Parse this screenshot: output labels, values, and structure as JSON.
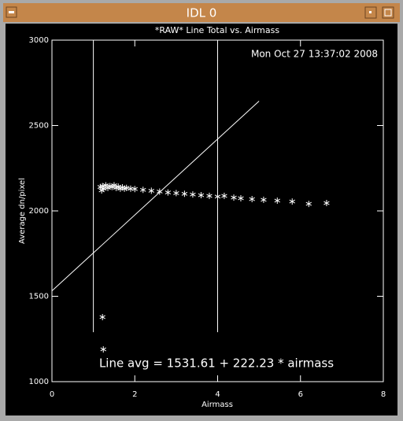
{
  "window": {
    "title": "IDL 0"
  },
  "chart_data": {
    "type": "scatter",
    "title": "*RAW* Line Total vs. Airmass",
    "timestamp": "Mon Oct 27 13:37:02 2008",
    "annotation": "Line avg = 1531.61 + 222.23 * airmass",
    "xlabel": "Airmass",
    "ylabel": "Average dn/pixel",
    "xlim": [
      0,
      8
    ],
    "xticks": [
      0,
      2,
      4,
      6,
      8
    ],
    "ylim": [
      1000,
      3000
    ],
    "yticks": [
      1000,
      1500,
      2000,
      2500,
      3000
    ],
    "series": [
      {
        "type": "scatter",
        "color": "#ffffff",
        "x": [
          1.17,
          1.2,
          1.22,
          1.25,
          1.3,
          1.35,
          1.4,
          1.45,
          1.5,
          1.55,
          1.6,
          1.65,
          1.7,
          1.75,
          1.8,
          1.9,
          2.0,
          2.2,
          2.4,
          2.6,
          2.8,
          3.0,
          3.2,
          3.4,
          3.6,
          3.8,
          4.0,
          4.16,
          4.39,
          4.56,
          4.83,
          5.11,
          5.44,
          5.8,
          6.2,
          6.63,
          1.22,
          1.24
        ],
        "values": [
          2140,
          2120,
          2145,
          2130,
          2150,
          2135,
          2145,
          2140,
          2150,
          2135,
          2142,
          2130,
          2138,
          2130,
          2135,
          2130,
          2128,
          2123,
          2118,
          2113,
          2108,
          2104,
          2100,
          2096,
          2092,
          2088,
          2084,
          2088,
          2078,
          2074,
          2069,
          2065,
          2060,
          2055,
          2041,
          2046,
          1378,
          1189
        ]
      },
      {
        "type": "line",
        "color": "#ffffff",
        "x": [
          0,
          5
        ],
        "values": [
          1531.61,
          2642.76
        ]
      }
    ],
    "vlines": [
      {
        "x": 1,
        "y": [
          1290,
          3000
        ]
      },
      {
        "x": 4,
        "y": [
          1290,
          3000
        ]
      }
    ]
  }
}
